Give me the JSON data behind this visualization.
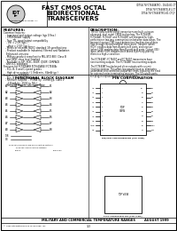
{
  "title_line1": "FAST CMOS OCTAL",
  "title_line2": "BIDIRECTIONAL",
  "title_line3": "TRANSCEIVERS",
  "part_numbers_right": "IDT54/74FCT640ATSO - D540-81-CT\nIDT54/74FCT640BTQ-81-CT\nIDT54/74FCT640ETSO-81-CTQF",
  "features_title": "FEATURES:",
  "features": [
    "Common features:",
    "  - Low input and output voltage (typ 0.9ns.)",
    "  - CMOS power supply",
    "  - True TTL input/output compatibility",
    "    - Vin = 2.0V (typ.)",
    "    - Vout = 2.5V (typ.)",
    "  - Meets or exceeds JEDEC standard 18 specifications",
    "  - Product available in Industrial, Filtered and Radiation",
    "    Enhanced versions",
    "  - Military-product compliant to MIL-STD-883, Class B",
    "    and DESC class level marked",
    "  - Available in SIP, SOIC, SSOP, QSOP, CERPACK",
    "    and LCC packages",
    "Features for FCT640A/B FCT640A/B/I FCTE40A:",
    "  - SCL, B, E and C-speed grades",
    "  - High drive outputs (1.7mA min., 64mA typ.)",
    "Features for FCT640T:",
    "  - Bus, B and C-speed grades",
    "  - Receiver outputs: - 7.5mA (ty., 15mA typ, Class I)",
    "    - 125mA (ty., 1504 ty, MIL)",
    "  - Reduced system switching noise"
  ],
  "description_title": "DESCRIPTION:",
  "desc_lines": [
    "The IDT octal bidirectional transceivers are built using an",
    "advanced, dual metal CMOS technology. The FCT640B,",
    "FCT640AT, FCT640T and FCT640BT are designed for high-",
    "performance two-way communication between data buses. The",
    "transmit/receive (T/B) input determines the direction of data",
    "flow through the bidirectional transceiver. Transmit (when",
    "HIGH) enables data from A ports to B ports, and receiver",
    "(when LOW) enables data from B ports to A ports. Output (OE)",
    "input, when HIGH, disables both A and B ports by placing",
    "them in a high-z condition.",
    "",
    "The FCT640AT, FCT640T and FCT640T transceivers have",
    "non inverting outputs. The FCT640BT has inverting outputs.",
    "",
    "The FCT640AT has balanced drive outputs with current",
    "limiting resistors. This offers low-ground bounce, eliminates",
    "undershoot and controlled output fall times, reducing the need",
    "for external series terminating resistors. The 50 output ports",
    "are plug-in replacements for PC back parts."
  ],
  "func_block_title": "FUNCTIONAL BLOCK DIAGRAM",
  "pin_config_title": "PIN CONFIGURATION",
  "footer_left": "MILITARY AND COMMERCIAL TEMPERATURE RANGES",
  "footer_right": "AUGUST 1999",
  "footer_bottom_left": "© 1999 Integrated Device Technology, Inc.",
  "footer_bottom_center": "3-3",
  "bg_color": "#ffffff",
  "border_color": "#000000",
  "text_color": "#000000",
  "logo_circle_color": "#cccccc",
  "left_pin_names": [
    "A1",
    "A2",
    "A3",
    "A4",
    "A5",
    "A6",
    "A7",
    "A8",
    "GND",
    "OE"
  ],
  "right_pin_names": [
    "B1",
    "B2",
    "B3",
    "B4",
    "B5",
    "B6",
    "B7",
    "B8",
    "VCC",
    "T/B"
  ],
  "a_labels": [
    "A1",
    "A2",
    "A3",
    "A4",
    "A5",
    "A6",
    "A7",
    "A8"
  ],
  "b_labels": [
    "B1",
    "B2",
    "B3",
    "B4",
    "B5",
    "B6",
    "B7",
    "B8"
  ]
}
